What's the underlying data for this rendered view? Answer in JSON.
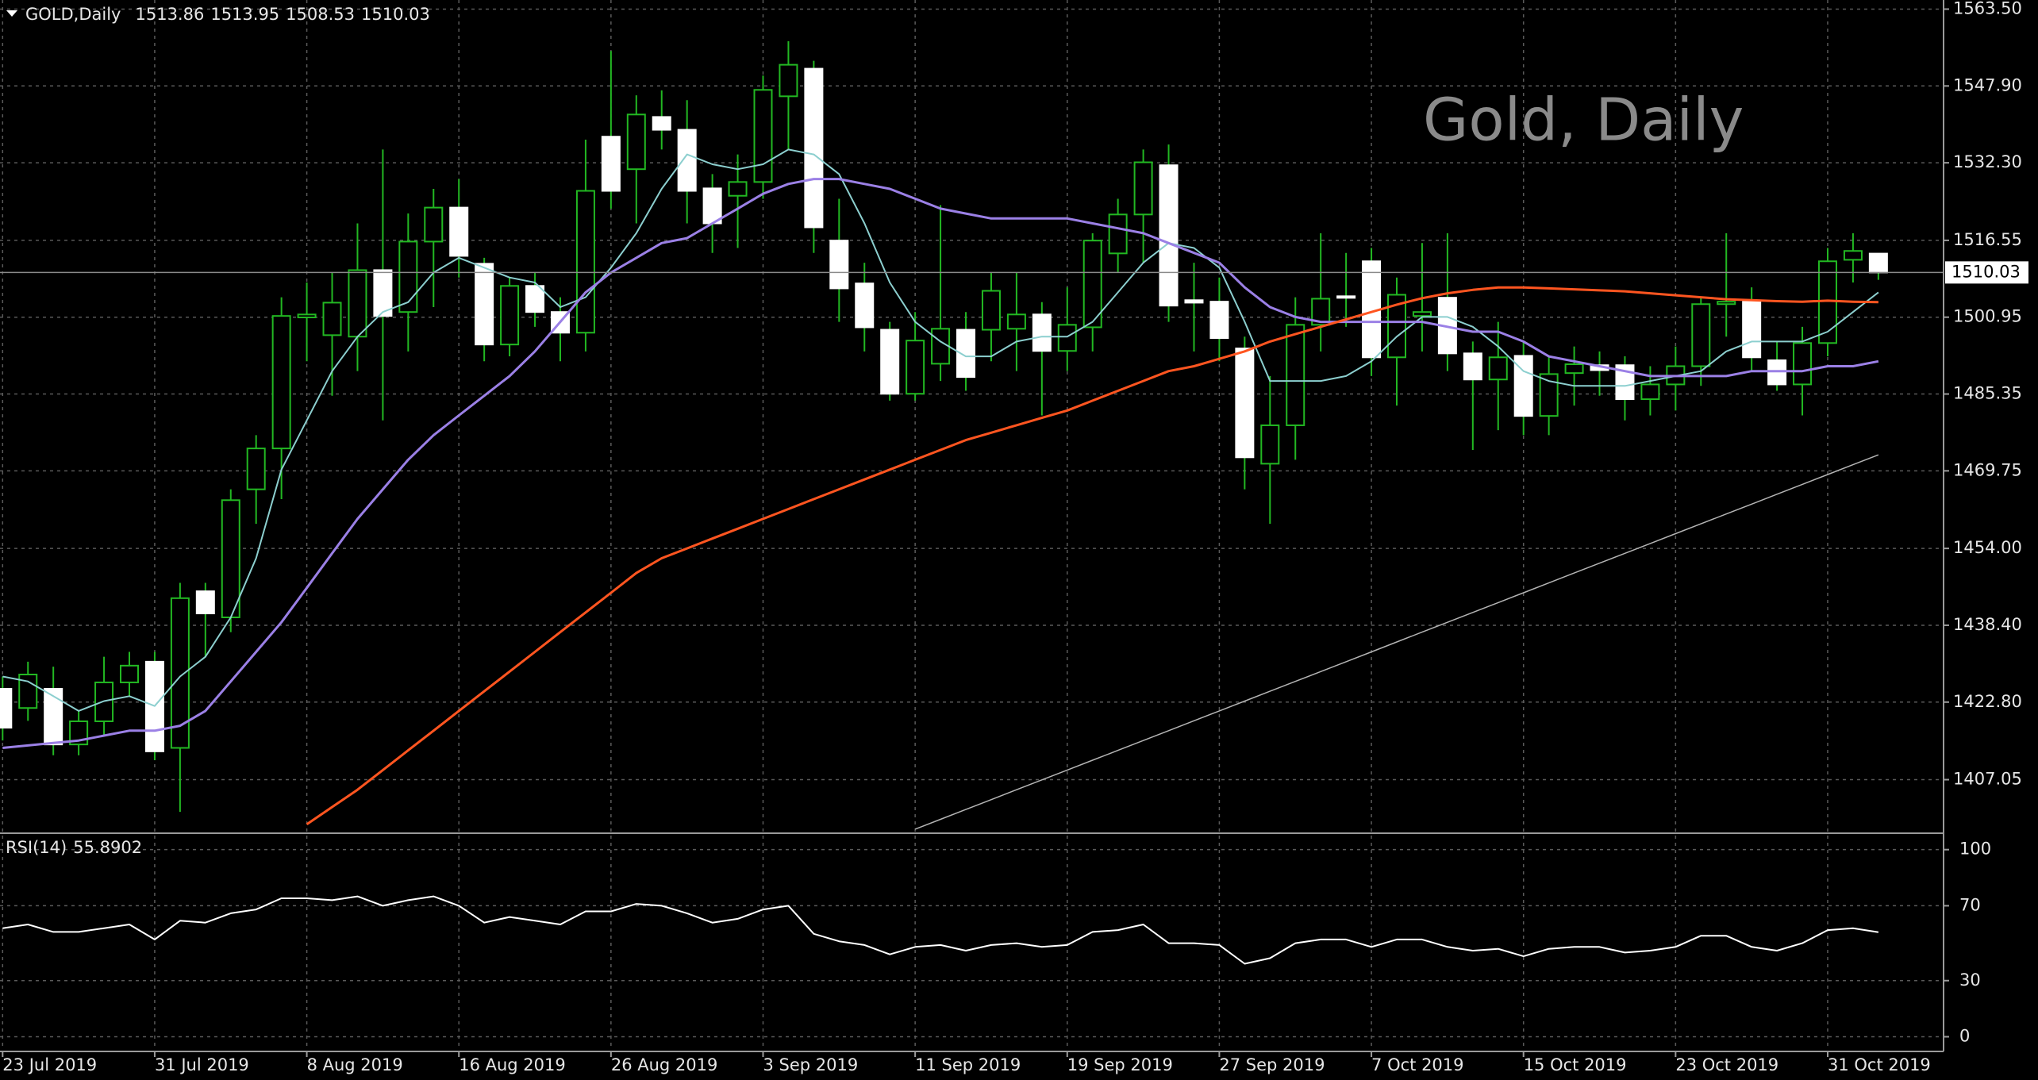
{
  "chart_data": {
    "type": "candlestick",
    "symbol": "GOLD,Daily",
    "watermark": "Gold, Daily",
    "categories": [
      "23 Jul 2019",
      null,
      null,
      null,
      null,
      null,
      "31 Jul 2019",
      null,
      null,
      null,
      null,
      null,
      "8 Aug 2019",
      null,
      null,
      null,
      null,
      null,
      "16 Aug 2019",
      null,
      null,
      null,
      null,
      null,
      "26 Aug 2019",
      null,
      null,
      null,
      null,
      null,
      "3 Sep 2019",
      null,
      null,
      null,
      null,
      null,
      "11 Sep 2019",
      null,
      null,
      null,
      null,
      null,
      "19 Sep 2019",
      null,
      null,
      null,
      null,
      null,
      "27 Sep 2019",
      null,
      null,
      null,
      null,
      null,
      "7 Oct 2019",
      null,
      null,
      null,
      null,
      null,
      "15 Oct 2019",
      null,
      null,
      null,
      null,
      null,
      "23 Oct 2019",
      null,
      null,
      null,
      null,
      null,
      "31 Oct 2019",
      null,
      null
    ],
    "open": [
      1425.5,
      1421.6,
      1425.5,
      1414.2,
      1418.9,
      1426.8,
      1431,
      1413.5,
      1445.3,
      1440,
      1466,
      1474.3,
      1500.9,
      1497.3,
      1497,
      1510.5,
      1502,
      1516.3,
      1523.2,
      1511.8,
      1495.4,
      1507.3,
      1502,
      1497.8,
      1537.6,
      1531,
      1541.6,
      1539,
      1527.1,
      1525.6,
      1528.4,
      1545.8,
      1551.4,
      1516.5,
      1507.8,
      1498.4,
      1485.4,
      1491.5,
      1498.4,
      1498.4,
      1498.6,
      1501.5,
      1494.1,
      1498.9,
      1513.9,
      1521.8,
      1531.8,
      1504.4,
      1504.1,
      1494.6,
      1471.2,
      1479,
      1499.4,
      1505.2,
      1512.3,
      1492.8,
      1501.2,
      1504.9,
      1493.6,
      1488.3,
      1493.1,
      1480.9,
      1489.6,
      1491.2,
      1491.2,
      1484.3,
      1487.3,
      1491,
      1503.6,
      1504.1,
      1492.2,
      1487.3,
      1495.7,
      1512.6,
      1513.86
    ],
    "high": [
      1428,
      1431,
      1430,
      1421,
      1432,
      1433,
      1433,
      1447,
      1447,
      1466,
      1477,
      1505,
      1508,
      1510,
      1520,
      1535,
      1522,
      1527,
      1529,
      1513,
      1509,
      1510,
      1505,
      1537,
      1555,
      1546,
      1547,
      1545,
      1530,
      1534,
      1550,
      1557,
      1553,
      1525,
      1512,
      1500,
      1502,
      1523.7,
      1502,
      1510,
      1510,
      1504,
      1507,
      1518,
      1525,
      1535,
      1536,
      1512,
      1509,
      1497,
      1489,
      1505,
      1518,
      1514,
      1515,
      1509,
      1516,
      1518,
      1496,
      1500,
      1496,
      1493,
      1495,
      1494,
      1493,
      1491,
      1495,
      1505,
      1518,
      1507,
      1496,
      1499,
      1515,
      1518,
      1513.95
    ],
    "low": [
      1415,
      1419,
      1412,
      1412,
      1416,
      1424,
      1411,
      1400.5,
      1432,
      1437,
      1459,
      1464,
      1492,
      1485,
      1490,
      1480,
      1494,
      1503,
      1509,
      1492,
      1493,
      1499,
      1492,
      1494,
      1523,
      1520,
      1535,
      1520,
      1514,
      1515,
      1525,
      1535,
      1514,
      1500,
      1494,
      1484,
      1484,
      1488,
      1486,
      1492,
      1490,
      1481,
      1490,
      1494,
      1510,
      1512,
      1500,
      1494,
      1492,
      1466,
      1459,
      1472,
      1494,
      1499,
      1489,
      1483,
      1494,
      1490,
      1474,
      1478,
      1477,
      1477,
      1483,
      1485,
      1480,
      1481,
      1482,
      1487,
      1497,
      1490,
      1486,
      1481,
      1493,
      1508,
      1508.53
    ],
    "close": [
      1417.6,
      1428.4,
      1414.2,
      1418.9,
      1426.8,
      1430.2,
      1412.8,
      1443.9,
      1440.8,
      1463.8,
      1474.3,
      1501.2,
      1501.5,
      1503.9,
      1510.5,
      1501.2,
      1516.3,
      1523.2,
      1513.4,
      1495.4,
      1507.3,
      1502,
      1497.8,
      1526.6,
      1526.6,
      1542.1,
      1539,
      1526.6,
      1520,
      1528.4,
      1547.1,
      1552.2,
      1519.2,
      1506.8,
      1498.9,
      1485.4,
      1496.2,
      1498.6,
      1488.8,
      1506.3,
      1501.5,
      1494.1,
      1499.4,
      1516.5,
      1521.8,
      1532.4,
      1503.3,
      1503.9,
      1496.7,
      1472.5,
      1479,
      1499.4,
      1504.7,
      1504.9,
      1492.8,
      1505.5,
      1502,
      1493.6,
      1488.3,
      1492.8,
      1480.9,
      1489.4,
      1491.4,
      1490.2,
      1484.3,
      1487.3,
      1491,
      1503.6,
      1504.1,
      1492.8,
      1487.3,
      1495.7,
      1512.3,
      1514.4,
      1510.03
    ],
    "up_color": "#22b822",
    "down_color": "#ffffff",
    "wick_color": "#22b822",
    "ylim": [
      1396.5,
      1565.35
    ],
    "yticks": [
      {
        "value": 1563.5,
        "label": "1563.50"
      },
      {
        "value": 1547.9,
        "label": "1547.90"
      },
      {
        "value": 1532.3,
        "label": "1532.30"
      },
      1516.55,
      1500.95,
      1485.35,
      1469.75,
      {
        "value": 1454,
        "label": "1454.00"
      },
      {
        "value": 1438.4,
        "label": "1438.40"
      },
      {
        "value": 1422.8,
        "label": "1422.80"
      },
      1407.05
    ],
    "grid": true,
    "overlays": [
      {
        "color": "#8ccfcf",
        "width": 2,
        "values": [
          1428,
          1427,
          1424,
          1421,
          1423,
          1424,
          1422,
          1428,
          1432,
          1440,
          1452,
          1470,
          1480,
          1490,
          1497,
          1502,
          1504,
          1510,
          1513,
          1511,
          1509,
          1508,
          1503,
          1505,
          1511,
          1518,
          1527,
          1534,
          1532,
          1531,
          1532,
          1535,
          1534,
          1530,
          1520,
          1508,
          1500,
          1496,
          1493,
          1493,
          1496,
          1497,
          1497,
          1500,
          1506,
          1512,
          1516,
          1515,
          1511,
          1500,
          1488,
          1488,
          1488,
          1489,
          1492,
          1497,
          1501,
          1501,
          1499,
          1495,
          1490,
          1488,
          1487,
          1487,
          1487,
          1488,
          1489,
          1490,
          1494,
          1496,
          1496,
          1496,
          1498,
          1502,
          1506
        ]
      },
      {
        "color": "#9b80e6",
        "width": 3,
        "values": [
          1413.5,
          1414,
          1414.5,
          1415,
          1416,
          1417,
          1417,
          1418,
          1421,
          1427,
          1433,
          1439,
          1446,
          1453,
          1460,
          1466,
          1472,
          1477,
          1481,
          1485,
          1489,
          1494,
          1500,
          1506,
          1510,
          1513,
          1516,
          1517,
          1520,
          1523,
          1526,
          1528,
          1529,
          1529,
          1528,
          1527,
          1525,
          1523,
          1522,
          1521,
          1521,
          1521,
          1521,
          1520,
          1519,
          1518,
          1516,
          1514,
          1512,
          1507,
          1503,
          1501,
          1500,
          1500,
          1500,
          1500,
          1500,
          1499,
          1498,
          1498,
          1496,
          1493,
          1492,
          1491,
          1490,
          1489,
          1489,
          1489,
          1489,
          1490,
          1490,
          1490,
          1491,
          1491,
          1492
        ]
      },
      {
        "color": "#ff5520",
        "width": 3,
        "values": [
          null,
          null,
          null,
          null,
          null,
          null,
          null,
          null,
          null,
          null,
          null,
          null,
          1398,
          1401.5,
          1405,
          1409,
          1413,
          1417,
          1421,
          1425,
          1429,
          1433,
          1437,
          1441,
          1445,
          1449,
          1452,
          1454,
          1456,
          1458,
          1460,
          1462,
          1464,
          1466,
          1468,
          1470,
          1472,
          1474,
          1476,
          1477.5,
          1479,
          1480.5,
          1482,
          1484,
          1486,
          1488,
          1490,
          1491,
          1492.5,
          1494,
          1496,
          1497.5,
          1499,
          1500.5,
          1502,
          1503.5,
          1504.8,
          1505.8,
          1506.5,
          1507,
          1507,
          1506.8,
          1506.6,
          1506.4,
          1506.2,
          1505.8,
          1505.4,
          1505,
          1504.6,
          1504.4,
          1504.2,
          1504.1,
          1504.3,
          1504.1,
          1504
        ]
      },
      {
        "color": "#b4b4b4",
        "width": 1.5,
        "values": [
          null,
          null,
          null,
          null,
          null,
          null,
          null,
          null,
          null,
          null,
          null,
          null,
          null,
          null,
          null,
          null,
          null,
          null,
          null,
          null,
          null,
          null,
          null,
          null,
          null,
          null,
          null,
          null,
          null,
          null,
          null,
          null,
          null,
          null,
          null,
          null,
          1397,
          1399,
          1401,
          1403,
          1405,
          1407,
          1409,
          1411,
          1413,
          1415,
          1417,
          1419,
          1421,
          1423,
          1425,
          1427,
          1429,
          1431,
          1433,
          1435,
          1437,
          1439,
          1441,
          1443,
          1445,
          1447,
          1449,
          1451,
          1453,
          1455,
          1457,
          1459,
          1461,
          1463,
          1465,
          1467,
          1469,
          1471,
          1473
        ]
      }
    ],
    "indicator": {
      "type": "line",
      "label": "RSI(14)",
      "color": "#ffffff",
      "values": [
        58,
        60,
        56,
        56,
        58,
        60,
        52,
        62,
        61,
        66,
        68,
        74,
        74,
        73,
        75,
        70,
        73,
        75,
        70,
        61,
        64,
        62,
        60,
        67,
        67,
        71,
        70,
        66,
        61,
        63,
        68,
        70,
        55,
        51,
        49,
        44,
        48,
        49,
        46,
        49,
        50,
        48,
        49,
        56,
        57,
        60,
        50,
        50,
        49,
        39,
        42,
        50,
        52,
        52,
        48,
        52,
        52,
        48,
        46,
        47,
        43,
        47,
        48,
        48,
        45,
        46,
        48,
        54,
        54,
        48,
        46,
        50,
        57,
        58,
        55.8902
      ],
      "ylim": [
        -7,
        107.5
      ],
      "yticks": [
        100,
        70,
        30,
        0
      ]
    }
  }
}
